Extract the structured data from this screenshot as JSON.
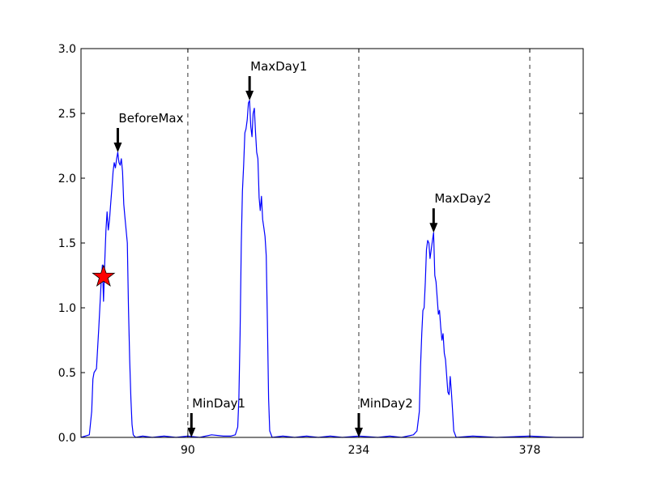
{
  "chart_data": {
    "type": "line",
    "title": "",
    "xlabel": "",
    "ylabel": "",
    "xlim": [
      0,
      423
    ],
    "ylim": [
      0,
      3.0
    ],
    "x_ticks": [
      {
        "value": 90,
        "label": "90"
      },
      {
        "value": 234,
        "label": "234"
      },
      {
        "value": 378,
        "label": "378"
      }
    ],
    "y_ticks": [
      {
        "value": 0.0,
        "label": "0.0"
      },
      {
        "value": 0.5,
        "label": "0.5"
      },
      {
        "value": 1.0,
        "label": "1.0"
      },
      {
        "value": 1.5,
        "label": "1.5"
      },
      {
        "value": 2.0,
        "label": "2.0"
      },
      {
        "value": 2.5,
        "label": "2.5"
      },
      {
        "value": 3.0,
        "label": "3.0"
      }
    ],
    "vlines": [
      90,
      234,
      378
    ],
    "grid": false,
    "series": [
      {
        "color": "#0000ff",
        "points": [
          [
            0,
            0
          ],
          [
            7,
            0.02
          ],
          [
            9,
            0.2
          ],
          [
            10,
            0.45
          ],
          [
            11,
            0.5
          ],
          [
            13,
            0.53
          ],
          [
            15,
            0.85
          ],
          [
            17,
            1.2
          ],
          [
            18,
            1.33
          ],
          [
            19,
            1.05
          ],
          [
            20,
            1.35
          ],
          [
            21,
            1.6
          ],
          [
            22,
            1.74
          ],
          [
            23,
            1.6
          ],
          [
            24,
            1.68
          ],
          [
            25,
            1.8
          ],
          [
            26,
            1.92
          ],
          [
            27,
            2.05
          ],
          [
            28,
            2.12
          ],
          [
            29,
            2.08
          ],
          [
            30,
            2.15
          ],
          [
            31,
            2.2
          ],
          [
            32,
            2.12
          ],
          [
            33,
            2.1
          ],
          [
            34,
            2.15
          ],
          [
            35,
            2.05
          ],
          [
            36,
            1.8
          ],
          [
            37,
            1.7
          ],
          [
            38,
            1.6
          ],
          [
            39,
            1.5
          ],
          [
            40,
            1.0
          ],
          [
            41,
            0.6
          ],
          [
            42,
            0.3
          ],
          [
            43,
            0.1
          ],
          [
            44,
            0.02
          ],
          [
            46,
            0
          ],
          [
            52,
            0.01
          ],
          [
            60,
            0
          ],
          [
            70,
            0.01
          ],
          [
            80,
            0
          ],
          [
            90,
            0.01
          ],
          [
            100,
            0
          ],
          [
            110,
            0.02
          ],
          [
            120,
            0.01
          ],
          [
            126,
            0.01
          ],
          [
            130,
            0.02
          ],
          [
            132,
            0.08
          ],
          [
            133,
            0.3
          ],
          [
            134,
            0.8
          ],
          [
            135,
            1.5
          ],
          [
            136,
            1.9
          ],
          [
            137,
            2.1
          ],
          [
            138,
            2.35
          ],
          [
            139,
            2.38
          ],
          [
            140,
            2.45
          ],
          [
            141,
            2.58
          ],
          [
            142,
            2.6
          ],
          [
            143,
            2.4
          ],
          [
            144,
            2.32
          ],
          [
            145,
            2.5
          ],
          [
            146,
            2.54
          ],
          [
            147,
            2.35
          ],
          [
            148,
            2.2
          ],
          [
            149,
            2.15
          ],
          [
            150,
            1.85
          ],
          [
            151,
            1.75
          ],
          [
            152,
            1.86
          ],
          [
            153,
            1.68
          ],
          [
            154,
            1.62
          ],
          [
            155,
            1.55
          ],
          [
            156,
            1.4
          ],
          [
            157,
            0.9
          ],
          [
            158,
            0.3
          ],
          [
            159,
            0.05
          ],
          [
            161,
            0
          ],
          [
            170,
            0.01
          ],
          [
            180,
            0
          ],
          [
            190,
            0.01
          ],
          [
            200,
            0
          ],
          [
            210,
            0.01
          ],
          [
            220,
            0
          ],
          [
            234,
            0.01
          ],
          [
            250,
            0
          ],
          [
            260,
            0.01
          ],
          [
            270,
            0
          ],
          [
            280,
            0.02
          ],
          [
            283,
            0.05
          ],
          [
            285,
            0.2
          ],
          [
            286,
            0.55
          ],
          [
            287,
            0.8
          ],
          [
            288,
            0.98
          ],
          [
            289,
            1.0
          ],
          [
            290,
            1.2
          ],
          [
            291,
            1.45
          ],
          [
            292,
            1.52
          ],
          [
            293,
            1.5
          ],
          [
            294,
            1.38
          ],
          [
            295,
            1.45
          ],
          [
            296,
            1.52
          ],
          [
            297,
            1.58
          ],
          [
            298,
            1.25
          ],
          [
            299,
            1.2
          ],
          [
            300,
            1.08
          ],
          [
            301,
            0.95
          ],
          [
            302,
            0.98
          ],
          [
            303,
            0.85
          ],
          [
            304,
            0.75
          ],
          [
            305,
            0.8
          ],
          [
            306,
            0.65
          ],
          [
            307,
            0.6
          ],
          [
            308,
            0.48
          ],
          [
            309,
            0.35
          ],
          [
            310,
            0.33
          ],
          [
            311,
            0.47
          ],
          [
            312,
            0.35
          ],
          [
            313,
            0.2
          ],
          [
            314,
            0.05
          ],
          [
            316,
            0
          ],
          [
            330,
            0.01
          ],
          [
            350,
            0
          ],
          [
            378,
            0.01
          ],
          [
            400,
            0
          ],
          [
            423,
            0
          ]
        ]
      }
    ],
    "annotations": [
      {
        "text": "BeforeMax",
        "x": 31,
        "y": 2.2
      },
      {
        "text": "MinDay1",
        "x": 93,
        "y": 0.0
      },
      {
        "text": "MaxDay1",
        "x": 142,
        "y": 2.6
      },
      {
        "text": "MinDay2",
        "x": 234,
        "y": 0.0
      },
      {
        "text": "MaxDay2",
        "x": 297,
        "y": 1.58
      }
    ],
    "marker": {
      "shape": "star",
      "color": "#ff0000",
      "x": 19,
      "y": 1.24
    }
  }
}
